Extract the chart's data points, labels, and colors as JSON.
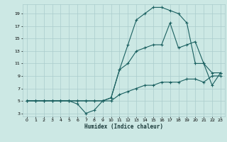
{
  "xlabel": "Humidex (Indice chaleur)",
  "xlim": [
    -0.5,
    23.5
  ],
  "ylim": [
    2.5,
    20.5
  ],
  "xticks": [
    0,
    1,
    2,
    3,
    4,
    5,
    6,
    7,
    8,
    9,
    10,
    11,
    12,
    13,
    14,
    15,
    16,
    17,
    18,
    19,
    20,
    21,
    22,
    23
  ],
  "yticks": [
    3,
    5,
    7,
    9,
    11,
    13,
    15,
    17,
    19
  ],
  "bg_color": "#cce8e4",
  "grid_color": "#aacccc",
  "line_color": "#1a6060",
  "line1_x": [
    0,
    1,
    2,
    3,
    4,
    5,
    6,
    7,
    8,
    9,
    10,
    11,
    12,
    13,
    14,
    15,
    16,
    17,
    18,
    19,
    20,
    21,
    22,
    23
  ],
  "line1_y": [
    5,
    5,
    5,
    5,
    5,
    5,
    5,
    5,
    5,
    5,
    5,
    6,
    6.5,
    7,
    7.5,
    7.5,
    8,
    8,
    8,
    8.5,
    8.5,
    8,
    9,
    9
  ],
  "line2_x": [
    0,
    1,
    2,
    3,
    4,
    5,
    6,
    7,
    8,
    9,
    10,
    11,
    12,
    13,
    14,
    15,
    16,
    17,
    18,
    19,
    20,
    21,
    22,
    23
  ],
  "line2_y": [
    5,
    5,
    5,
    5,
    5,
    5,
    4.5,
    3,
    3.5,
    5,
    5.5,
    10,
    14,
    18,
    19,
    20,
    20,
    19.5,
    19,
    17.5,
    11,
    11,
    7.5,
    9.5
  ],
  "line3_x": [
    0,
    1,
    2,
    3,
    4,
    5,
    6,
    7,
    8,
    9,
    10,
    11,
    12,
    13,
    14,
    15,
    16,
    17,
    18,
    19,
    20,
    21,
    22,
    23
  ],
  "line3_y": [
    5,
    5,
    5,
    5,
    5,
    5,
    5,
    5,
    5,
    5,
    5.5,
    10,
    11,
    13,
    13.5,
    14,
    14,
    17.5,
    13.5,
    14,
    14.5,
    11,
    9.5,
    9.5
  ]
}
